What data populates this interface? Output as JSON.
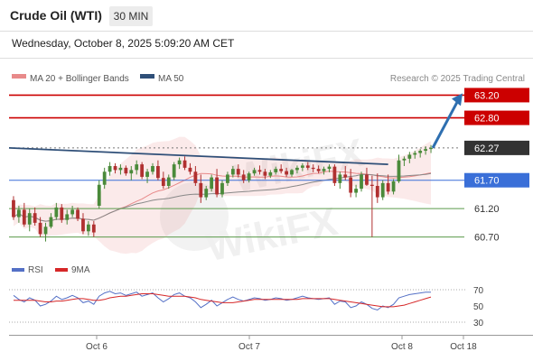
{
  "header": {
    "instrument": "Crude Oil (WTI)",
    "timeframe": "30 MIN",
    "datetime": "Wednesday, October 8, 2025 5:09:20 AM CET"
  },
  "legend": {
    "items": [
      {
        "label": "MA 20 + Bollinger Bands",
        "color": "#e88a8a"
      },
      {
        "label": "MA 50",
        "color": "#2f4f78"
      }
    ],
    "credit": "Research © 2025 Trading Central"
  },
  "rsi_legend": {
    "items": [
      {
        "label": "RSI",
        "color": "#5470c6"
      },
      {
        "label": "9MA",
        "color": "#d62728"
      }
    ]
  },
  "colors": {
    "resistance": "#cc0000",
    "support_pivot": "#3a6fd8",
    "support": "#5a9a4a",
    "current": "#333333",
    "trendline": "#2f4f78",
    "candle_up": "#4a8a3a",
    "candle_down": "#b03030",
    "arrow": "#2e6fb0"
  },
  "chart_data": [
    {
      "type": "candlestick",
      "title": "Crude Oil (WTI)",
      "ylim": [
        60.55,
        63.35
      ],
      "x_labels": [
        "Oct 6",
        "Oct 7",
        "Oct 8",
        "Oct 18"
      ],
      "levels": [
        {
          "label": "63.20",
          "value": 63.2,
          "kind": "resistance"
        },
        {
          "label": "62.80",
          "value": 62.8,
          "kind": "resistance"
        },
        {
          "label": "62.27",
          "value": 62.27,
          "kind": "current"
        },
        {
          "label": "61.70",
          "value": 61.7,
          "kind": "pivot"
        },
        {
          "label": "61.20",
          "value": 61.2,
          "kind": "support"
        },
        {
          "label": "60.70",
          "value": 60.7,
          "kind": "support"
        }
      ],
      "ohlc": [
        [
          61.35,
          61.42,
          61.0,
          61.05
        ],
        [
          61.05,
          61.25,
          60.95,
          61.18
        ],
        [
          61.18,
          61.3,
          60.88,
          60.92
        ],
        [
          60.92,
          61.2,
          60.8,
          61.12
        ],
        [
          61.12,
          61.22,
          60.9,
          60.95
        ],
        [
          60.95,
          61.05,
          60.7,
          60.75
        ],
        [
          60.75,
          60.95,
          60.62,
          60.88
        ],
        [
          60.88,
          61.12,
          60.85,
          61.05
        ],
        [
          61.05,
          61.3,
          61.0,
          61.22
        ],
        [
          61.22,
          61.28,
          60.95,
          61.0
        ],
        [
          61.0,
          61.18,
          60.92,
          61.1
        ],
        [
          61.1,
          61.25,
          61.05,
          61.18
        ],
        [
          61.18,
          61.22,
          60.98,
          61.02
        ],
        [
          61.02,
          61.12,
          60.75,
          60.8
        ],
        [
          60.8,
          60.98,
          60.72,
          60.92
        ],
        [
          60.92,
          60.98,
          60.7,
          60.78
        ],
        [
          61.25,
          61.7,
          61.2,
          61.62
        ],
        [
          61.62,
          61.92,
          61.55,
          61.85
        ],
        [
          61.85,
          62.02,
          61.78,
          61.95
        ],
        [
          61.95,
          62.0,
          61.82,
          61.88
        ],
        [
          61.88,
          61.98,
          61.8,
          61.92
        ],
        [
          61.92,
          61.96,
          61.78,
          61.82
        ],
        [
          61.82,
          61.95,
          61.7,
          61.88
        ],
        [
          61.88,
          62.05,
          61.8,
          61.98
        ],
        [
          61.98,
          62.02,
          61.72,
          61.76
        ],
        [
          61.76,
          61.9,
          61.65,
          61.85
        ],
        [
          61.85,
          62.0,
          61.8,
          61.95
        ],
        [
          61.95,
          62.05,
          61.7,
          61.74
        ],
        [
          61.74,
          61.85,
          61.55,
          61.6
        ],
        [
          61.6,
          61.8,
          61.55,
          61.75
        ],
        [
          61.75,
          62.02,
          61.7,
          61.98
        ],
        [
          61.98,
          62.1,
          61.9,
          62.05
        ],
        [
          62.05,
          62.12,
          61.88,
          61.92
        ],
        [
          61.92,
          62.0,
          61.8,
          61.85
        ],
        [
          61.85,
          61.95,
          61.6,
          61.65
        ],
        [
          61.65,
          61.8,
          61.3,
          61.4
        ],
        [
          61.4,
          61.6,
          61.35,
          61.55
        ],
        [
          61.55,
          61.8,
          61.5,
          61.75
        ],
        [
          61.75,
          61.9,
          61.4,
          61.45
        ],
        [
          61.45,
          61.7,
          61.4,
          61.65
        ],
        [
          61.65,
          61.85,
          61.6,
          61.8
        ],
        [
          61.8,
          61.95,
          61.75,
          61.9
        ],
        [
          61.9,
          61.98,
          61.75,
          61.8
        ],
        [
          61.8,
          61.88,
          61.65,
          61.7
        ],
        [
          61.7,
          61.85,
          61.66,
          61.82
        ],
        [
          61.82,
          61.92,
          61.78,
          61.88
        ],
        [
          61.88,
          61.96,
          61.8,
          61.85
        ],
        [
          61.85,
          61.9,
          61.72,
          61.78
        ],
        [
          61.78,
          61.88,
          61.74,
          61.84
        ],
        [
          61.84,
          61.94,
          61.8,
          61.9
        ],
        [
          61.9,
          61.98,
          61.82,
          61.86
        ],
        [
          61.86,
          61.92,
          61.76,
          61.8
        ],
        [
          61.8,
          61.9,
          61.76,
          61.88
        ],
        [
          61.88,
          61.96,
          61.82,
          61.92
        ],
        [
          61.92,
          62.0,
          61.86,
          61.96
        ],
        [
          61.96,
          62.02,
          61.88,
          61.92
        ],
        [
          61.92,
          61.98,
          61.84,
          61.9
        ],
        [
          61.9,
          61.96,
          61.82,
          61.86
        ],
        [
          61.86,
          61.94,
          61.8,
          61.9
        ],
        [
          61.9,
          61.98,
          61.84,
          61.94
        ],
        [
          61.94,
          61.98,
          61.6,
          61.65
        ],
        [
          61.65,
          61.85,
          61.55,
          61.8
        ],
        [
          61.8,
          61.95,
          61.7,
          61.75
        ],
        [
          61.75,
          61.9,
          61.4,
          61.48
        ],
        [
          61.48,
          61.62,
          61.4,
          61.55
        ],
        [
          61.55,
          61.85,
          61.5,
          61.8
        ],
        [
          61.8,
          61.92,
          61.6,
          61.62
        ],
        [
          61.62,
          61.78,
          60.7,
          61.6
        ],
        [
          61.6,
          61.82,
          61.3,
          61.4
        ],
        [
          61.4,
          61.7,
          61.35,
          61.65
        ],
        [
          61.65,
          61.8,
          61.45,
          61.5
        ],
        [
          61.5,
          61.72,
          61.45,
          61.68
        ],
        [
          61.68,
          62.15,
          61.65,
          62.05
        ],
        [
          62.05,
          62.12,
          61.95,
          62.08
        ],
        [
          62.08,
          62.2,
          62.0,
          62.15
        ],
        [
          62.15,
          62.22,
          62.08,
          62.18
        ],
        [
          62.18,
          62.25,
          62.1,
          62.22
        ],
        [
          62.22,
          62.3,
          62.15,
          62.25
        ],
        [
          62.25,
          62.32,
          62.18,
          62.27
        ]
      ]
    },
    {
      "type": "line",
      "title": "RSI",
      "ylim": [
        30,
        70
      ],
      "y_ticks": [
        "70",
        "50",
        "30"
      ],
      "series": [
        {
          "name": "RSI",
          "values": [
            63,
            58,
            55,
            60,
            57,
            50,
            52,
            56,
            62,
            58,
            60,
            63,
            60,
            54,
            56,
            52,
            62,
            66,
            68,
            65,
            66,
            63,
            65,
            67,
            62,
            64,
            66,
            60,
            55,
            59,
            64,
            66,
            62,
            60,
            55,
            48,
            52,
            57,
            50,
            54,
            58,
            61,
            58,
            56,
            58,
            60,
            59,
            57,
            58,
            60,
            59,
            57,
            58,
            60,
            62,
            60,
            59,
            58,
            59,
            60,
            52,
            56,
            55,
            48,
            50,
            55,
            52,
            47,
            45,
            50,
            48,
            52,
            60,
            62,
            64,
            65,
            66,
            67,
            67
          ]
        },
        {
          "name": "9MA",
          "values": [
            57,
            57,
            57,
            57,
            57,
            56,
            55,
            55,
            56,
            56,
            57,
            58,
            59,
            59,
            58,
            57,
            57,
            58,
            60,
            61,
            62,
            62,
            63,
            64,
            65,
            65,
            65,
            64,
            63,
            62,
            62,
            62,
            62,
            61,
            60,
            58,
            57,
            56,
            55,
            54,
            54,
            54,
            55,
            56,
            57,
            58,
            58,
            58,
            58,
            58,
            58,
            58,
            58,
            58,
            59,
            59,
            59,
            59,
            59,
            59,
            58,
            57,
            56,
            55,
            54,
            53,
            52,
            51,
            50,
            49,
            49,
            49,
            50,
            51,
            53,
            55,
            57,
            59,
            61
          ]
        }
      ]
    }
  ]
}
